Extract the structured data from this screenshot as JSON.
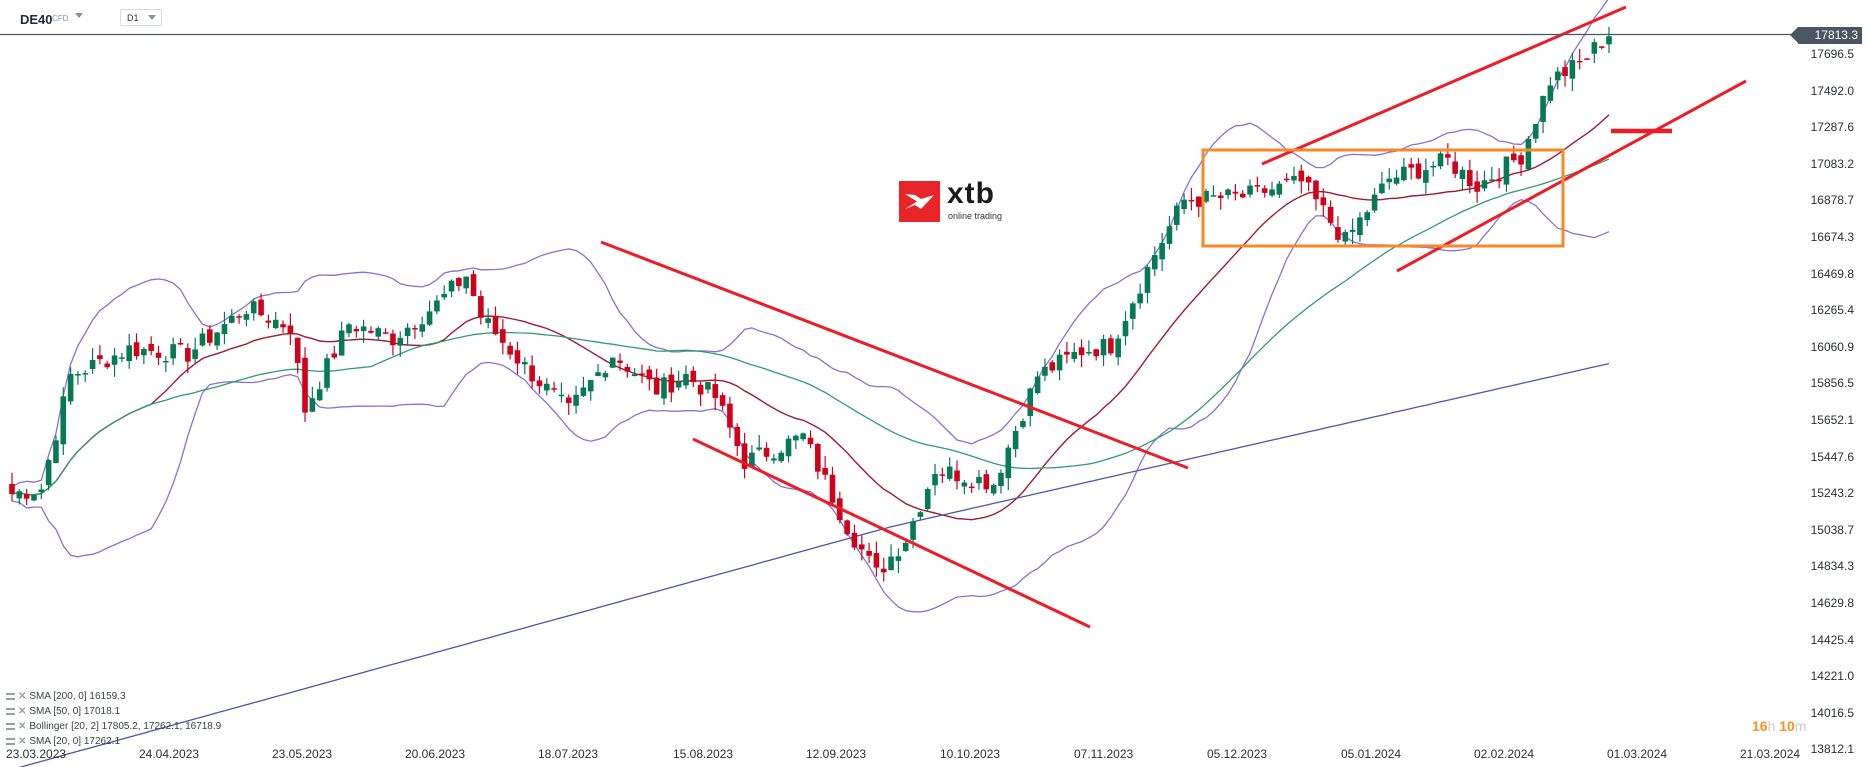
{
  "header": {
    "symbol": "DE40",
    "symbol_type": "CFD",
    "timeframe": "D1"
  },
  "current_price": "17813.3",
  "logo": {
    "brand": "xtb",
    "tagline": "online trading"
  },
  "countdown": {
    "hours": "16",
    "hours_unit": "h",
    "minutes": "10",
    "minutes_unit": "m"
  },
  "legend": [
    {
      "label": "SMA [200, 0] 16159.3"
    },
    {
      "label": "SMA [50, 0] 17018.1"
    },
    {
      "label": "Bollinger  [20, 2] 17805.2,  17262.1,  16718.9"
    },
    {
      "label": "SMA [20, 0] 17262.1"
    }
  ],
  "colors": {
    "bull": "#057a55",
    "bear": "#d0021b",
    "sma20": "#a3192e",
    "sma50": "#2e9e6e",
    "sma200": "#4a56b0",
    "bollinger": "#8a6fd8",
    "trendline": "#ee1c25",
    "box": "#f7892a",
    "price_line": "#4a5662"
  },
  "chart_data": {
    "type": "candlestick",
    "title": "DE40 CFD D1",
    "xlabel": "",
    "ylabel": "",
    "ylim": [
      13812.1,
      17813.3
    ],
    "y_ticks": [
      "17696.5",
      "17492.0",
      "17287.6",
      "17083.2",
      "16878.7",
      "16674.3",
      "16469.8",
      "16265.4",
      "16060.9",
      "15856.5",
      "15652.1",
      "15447.6",
      "15243.2",
      "15038.7",
      "14834.3",
      "14629.8",
      "14425.4",
      "14221.0",
      "14016.5",
      "13812.1"
    ],
    "x_ticks": [
      "23.03.2023",
      "24.04.2023",
      "23.05.2023",
      "20.06.2023",
      "18.07.2023",
      "15.08.2023",
      "12.09.2023",
      "10.10.2023",
      "07.11.2023",
      "05.12.2023",
      "05.01.2024",
      "02.02.2024",
      "01.03.2024",
      "21.03.2024"
    ],
    "last_close": 17813.3,
    "indicators": {
      "SMA200": 16159.3,
      "SMA50": 17018.1,
      "Bollinger_20_2": {
        "upper": 17805.2,
        "middle": 17262.1,
        "lower": 16718.9
      },
      "SMA20": 17262.1
    },
    "annotations": [
      "Descending channel Jul-Oct 2023 (two red parallel lines)",
      "Orange consolidation rectangle Dec 2023 - Feb 2024 (~16640-17160)",
      "Ascending channel Dec 2023 - Mar 2024 (two red parallel lines)",
      "Short horizontal red support line ~17250"
    ],
    "grid": false,
    "legend_position": "bottom-left"
  }
}
